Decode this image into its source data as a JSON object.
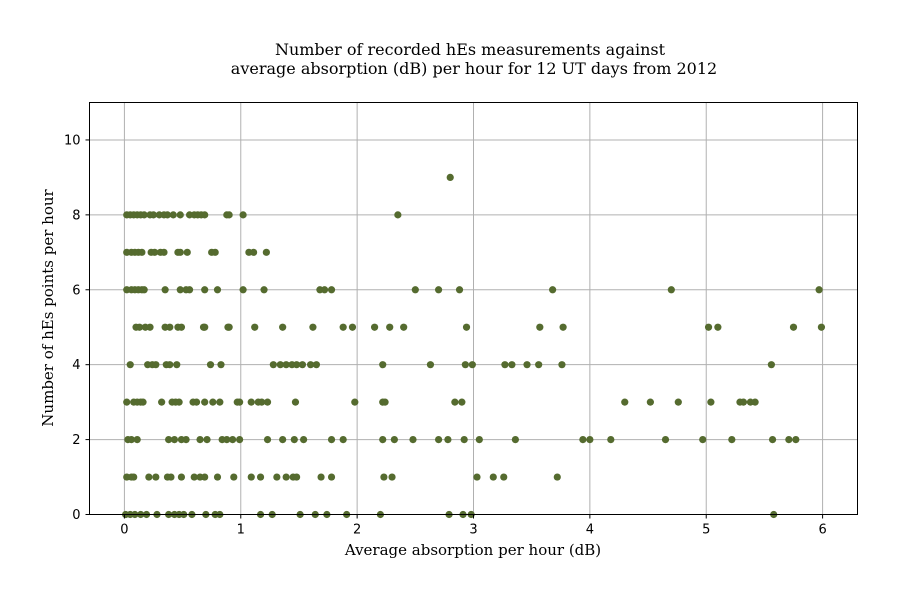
{
  "chart_data": {
    "type": "scatter",
    "title": [
      "Number of recorded hEs measurements against",
      "average absorption (dB) per hour for 12 UT days from 2012"
    ],
    "xlabel": "Average absorption per hour (dB)",
    "ylabel": "Number of hEs points per hour",
    "xlim": [
      -0.3,
      6.3
    ],
    "ylim": [
      0,
      11
    ],
    "xticks": [
      0,
      1,
      2,
      3,
      4,
      5,
      6
    ],
    "yticks": [
      0,
      2,
      4,
      6,
      8,
      10
    ],
    "grid": true,
    "marker_color": "#556b2f",
    "points": [
      [
        0.02,
        8
      ],
      [
        0.05,
        8
      ],
      [
        0.08,
        8
      ],
      [
        0.11,
        8
      ],
      [
        0.14,
        8
      ],
      [
        0.17,
        8
      ],
      [
        0.22,
        8
      ],
      [
        0.25,
        8
      ],
      [
        0.3,
        8
      ],
      [
        0.34,
        8
      ],
      [
        0.37,
        8
      ],
      [
        0.42,
        8
      ],
      [
        0.48,
        8
      ],
      [
        0.56,
        8
      ],
      [
        0.6,
        8
      ],
      [
        0.63,
        8
      ],
      [
        0.66,
        8
      ],
      [
        0.69,
        8
      ],
      [
        0.88,
        8
      ],
      [
        0.9,
        8
      ],
      [
        1.02,
        8
      ],
      [
        2.35,
        8
      ],
      [
        0.02,
        7
      ],
      [
        0.06,
        7
      ],
      [
        0.09,
        7
      ],
      [
        0.12,
        7
      ],
      [
        0.15,
        7
      ],
      [
        0.23,
        7
      ],
      [
        0.26,
        7
      ],
      [
        0.31,
        7
      ],
      [
        0.34,
        7
      ],
      [
        0.46,
        7
      ],
      [
        0.48,
        7
      ],
      [
        0.54,
        7
      ],
      [
        0.75,
        7
      ],
      [
        0.78,
        7
      ],
      [
        1.07,
        7
      ],
      [
        1.11,
        7
      ],
      [
        1.22,
        7
      ],
      [
        0.02,
        6
      ],
      [
        0.06,
        6
      ],
      [
        0.09,
        6
      ],
      [
        0.12,
        6
      ],
      [
        0.15,
        6
      ],
      [
        0.17,
        6
      ],
      [
        0.35,
        6
      ],
      [
        0.48,
        6
      ],
      [
        0.53,
        6
      ],
      [
        0.56,
        6
      ],
      [
        0.69,
        6
      ],
      [
        0.8,
        6
      ],
      [
        1.02,
        6
      ],
      [
        1.2,
        6
      ],
      [
        1.68,
        6
      ],
      [
        1.72,
        6
      ],
      [
        1.78,
        6
      ],
      [
        2.5,
        6
      ],
      [
        2.7,
        6
      ],
      [
        2.88,
        6
      ],
      [
        3.68,
        6
      ],
      [
        4.7,
        6
      ],
      [
        5.97,
        6
      ],
      [
        0.1,
        5
      ],
      [
        0.13,
        5
      ],
      [
        0.18,
        5
      ],
      [
        0.22,
        5
      ],
      [
        0.35,
        5
      ],
      [
        0.39,
        5
      ],
      [
        0.46,
        5
      ],
      [
        0.49,
        5
      ],
      [
        0.68,
        5
      ],
      [
        0.69,
        5
      ],
      [
        0.89,
        5
      ],
      [
        0.9,
        5
      ],
      [
        1.12,
        5
      ],
      [
        1.36,
        5
      ],
      [
        1.62,
        5
      ],
      [
        1.88,
        5
      ],
      [
        1.96,
        5
      ],
      [
        2.15,
        5
      ],
      [
        2.28,
        5
      ],
      [
        2.4,
        5
      ],
      [
        2.94,
        5
      ],
      [
        3.57,
        5
      ],
      [
        3.77,
        5
      ],
      [
        5.02,
        5
      ],
      [
        5.1,
        5
      ],
      [
        5.75,
        5
      ],
      [
        5.99,
        5
      ],
      [
        0.05,
        4
      ],
      [
        0.2,
        4
      ],
      [
        0.24,
        4
      ],
      [
        0.27,
        4
      ],
      [
        0.36,
        4
      ],
      [
        0.39,
        4
      ],
      [
        0.45,
        4
      ],
      [
        0.74,
        4
      ],
      [
        0.83,
        4
      ],
      [
        1.28,
        4
      ],
      [
        1.34,
        4
      ],
      [
        1.39,
        4
      ],
      [
        1.44,
        4
      ],
      [
        1.48,
        4
      ],
      [
        1.53,
        4
      ],
      [
        1.6,
        4
      ],
      [
        1.65,
        4
      ],
      [
        2.22,
        4
      ],
      [
        2.63,
        4
      ],
      [
        2.93,
        4
      ],
      [
        2.99,
        4
      ],
      [
        3.27,
        4
      ],
      [
        3.33,
        4
      ],
      [
        3.46,
        4
      ],
      [
        3.56,
        4
      ],
      [
        3.76,
        4
      ],
      [
        5.56,
        4
      ],
      [
        0.02,
        3
      ],
      [
        0.08,
        3
      ],
      [
        0.11,
        3
      ],
      [
        0.14,
        3
      ],
      [
        0.16,
        3
      ],
      [
        0.32,
        3
      ],
      [
        0.41,
        3
      ],
      [
        0.44,
        3
      ],
      [
        0.47,
        3
      ],
      [
        0.59,
        3
      ],
      [
        0.62,
        3
      ],
      [
        0.69,
        3
      ],
      [
        0.76,
        3
      ],
      [
        0.82,
        3
      ],
      [
        0.97,
        3
      ],
      [
        0.99,
        3
      ],
      [
        1.09,
        3
      ],
      [
        1.15,
        3
      ],
      [
        1.18,
        3
      ],
      [
        1.23,
        3
      ],
      [
        1.47,
        3
      ],
      [
        1.98,
        3
      ],
      [
        2.22,
        3
      ],
      [
        2.24,
        3
      ],
      [
        2.84,
        3
      ],
      [
        2.9,
        3
      ],
      [
        4.3,
        3
      ],
      [
        4.52,
        3
      ],
      [
        4.76,
        3
      ],
      [
        5.04,
        3
      ],
      [
        5.29,
        3
      ],
      [
        5.32,
        3
      ],
      [
        5.38,
        3
      ],
      [
        5.42,
        3
      ],
      [
        0.03,
        2
      ],
      [
        0.06,
        2
      ],
      [
        0.11,
        2
      ],
      [
        0.38,
        2
      ],
      [
        0.43,
        2
      ],
      [
        0.49,
        2
      ],
      [
        0.53,
        2
      ],
      [
        0.65,
        2
      ],
      [
        0.71,
        2
      ],
      [
        0.84,
        2
      ],
      [
        0.88,
        2
      ],
      [
        0.93,
        2
      ],
      [
        0.99,
        2
      ],
      [
        1.23,
        2
      ],
      [
        1.36,
        2
      ],
      [
        1.46,
        2
      ],
      [
        1.54,
        2
      ],
      [
        1.78,
        2
      ],
      [
        1.88,
        2
      ],
      [
        2.22,
        2
      ],
      [
        2.32,
        2
      ],
      [
        2.48,
        2
      ],
      [
        2.7,
        2
      ],
      [
        2.78,
        2
      ],
      [
        2.92,
        2
      ],
      [
        3.05,
        2
      ],
      [
        3.36,
        2
      ],
      [
        3.94,
        2
      ],
      [
        4.0,
        2
      ],
      [
        4.18,
        2
      ],
      [
        4.65,
        2
      ],
      [
        4.97,
        2
      ],
      [
        5.22,
        2
      ],
      [
        5.57,
        2
      ],
      [
        5.71,
        2
      ],
      [
        5.77,
        2
      ],
      [
        0.02,
        1
      ],
      [
        0.06,
        1
      ],
      [
        0.08,
        1
      ],
      [
        0.21,
        1
      ],
      [
        0.27,
        1
      ],
      [
        0.37,
        1
      ],
      [
        0.4,
        1
      ],
      [
        0.49,
        1
      ],
      [
        0.6,
        1
      ],
      [
        0.65,
        1
      ],
      [
        0.69,
        1
      ],
      [
        0.8,
        1
      ],
      [
        0.94,
        1
      ],
      [
        1.09,
        1
      ],
      [
        1.17,
        1
      ],
      [
        1.31,
        1
      ],
      [
        1.39,
        1
      ],
      [
        1.45,
        1
      ],
      [
        1.48,
        1
      ],
      [
        1.69,
        1
      ],
      [
        1.78,
        1
      ],
      [
        2.23,
        1
      ],
      [
        2.3,
        1
      ],
      [
        3.03,
        1
      ],
      [
        3.17,
        1
      ],
      [
        3.26,
        1
      ],
      [
        3.72,
        1
      ],
      [
        0.01,
        0
      ],
      [
        0.05,
        0
      ],
      [
        0.09,
        0
      ],
      [
        0.14,
        0
      ],
      [
        0.19,
        0
      ],
      [
        0.28,
        0
      ],
      [
        0.38,
        0
      ],
      [
        0.43,
        0
      ],
      [
        0.47,
        0
      ],
      [
        0.51,
        0
      ],
      [
        0.58,
        0
      ],
      [
        0.7,
        0
      ],
      [
        0.78,
        0
      ],
      [
        0.82,
        0
      ],
      [
        1.17,
        0
      ],
      [
        1.27,
        0
      ],
      [
        1.51,
        0
      ],
      [
        1.64,
        0
      ],
      [
        1.74,
        0
      ],
      [
        1.91,
        0
      ],
      [
        2.2,
        0
      ],
      [
        2.79,
        0
      ],
      [
        2.91,
        0
      ],
      [
        2.98,
        0
      ],
      [
        5.58,
        0
      ],
      [
        2.8,
        9
      ]
    ]
  }
}
